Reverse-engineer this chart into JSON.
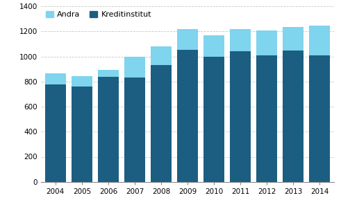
{
  "years": [
    2004,
    2005,
    2006,
    2007,
    2008,
    2009,
    2010,
    2011,
    2012,
    2013,
    2014
  ],
  "kreditinstitut": [
    775,
    760,
    838,
    832,
    930,
    1050,
    1000,
    1040,
    1010,
    1045,
    1010
  ],
  "andra": [
    88,
    82,
    52,
    168,
    152,
    168,
    170,
    178,
    195,
    192,
    238
  ],
  "color_kredit": "#1b5e82",
  "color_andra": "#7fd4ee",
  "ylim": [
    0,
    1400
  ],
  "yticks": [
    0,
    200,
    400,
    600,
    800,
    1000,
    1200,
    1400
  ],
  "bar_width": 0.78,
  "background_color": "#ffffff",
  "grid_color": "#c8c8c8"
}
